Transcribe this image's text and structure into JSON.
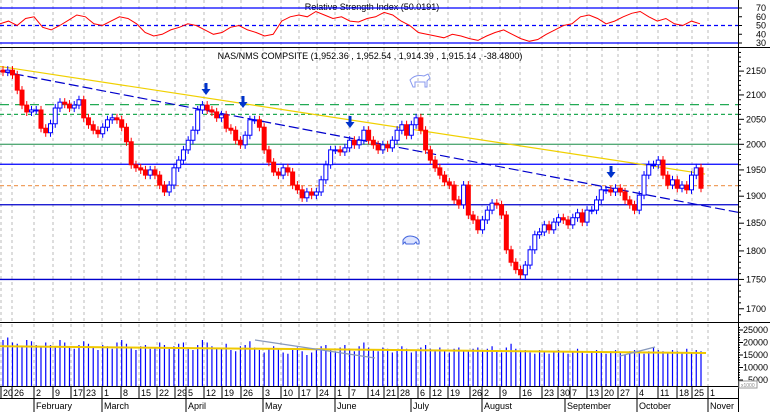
{
  "chart_data": [
    {
      "type": "line",
      "panel": "rsi",
      "title": "Relative Strength Index (50.0191)",
      "y_ticks": [
        "70",
        "60",
        "50",
        "40",
        "30"
      ],
      "ylim": [
        30,
        70
      ],
      "reference_lines": [
        {
          "value": 70,
          "style": "solid"
        },
        {
          "value": 50,
          "style": "dashed"
        },
        {
          "value": 30,
          "style": "solid"
        }
      ],
      "values": [
        52,
        55,
        50,
        58,
        60,
        48,
        45,
        50,
        56,
        62,
        60,
        52,
        50,
        55,
        60,
        58,
        52,
        42,
        38,
        40,
        45,
        48,
        52,
        50,
        45,
        40,
        42,
        48,
        50,
        45,
        42,
        38,
        40,
        55,
        60,
        62,
        60,
        66,
        62,
        58,
        60,
        55,
        54,
        58,
        60,
        65,
        62,
        55,
        50,
        42,
        40,
        38,
        36,
        40,
        38,
        35,
        33,
        38,
        42,
        45,
        40,
        35,
        32,
        34,
        40,
        45,
        50,
        52,
        60,
        62,
        58,
        52,
        55,
        60,
        64,
        66,
        60,
        55,
        58,
        52,
        50,
        55,
        52
      ],
      "colors": {
        "line": "#ff0000",
        "reference": "#0000ff"
      }
    },
    {
      "type": "candlestick",
      "panel": "price",
      "title": "NAS/NMS COMPSITE (1,952.36 , 1,952.54 , 1,914.39 , 1,915.14 , -38.4800)",
      "y_scale": "log",
      "ylim": [
        1680,
        2190
      ],
      "y_ticks": [
        "2150",
        "2100",
        "2050",
        "2000",
        "1950",
        "1900",
        "1850",
        "1800",
        "1750",
        "1700"
      ],
      "closes": [
        2148,
        2152,
        2142,
        2110,
        2079,
        2065,
        2069,
        2069,
        2032,
        2023,
        2041,
        2073,
        2085,
        2081,
        2073,
        2079,
        2090,
        2053,
        2039,
        2028,
        2021,
        2034,
        2049,
        2053,
        2049,
        2034,
        2005,
        1960,
        1954,
        1950,
        1940,
        1950,
        1940,
        1921,
        1908,
        1921,
        1954,
        1969,
        1989,
        2008,
        2028,
        2069,
        2079,
        2069,
        2065,
        2053,
        2059,
        2032,
        2028,
        2008,
        1999,
        2018,
        2049,
        2049,
        2034,
        1989,
        1965,
        1946,
        1940,
        1954,
        1946,
        1921,
        1912,
        1897,
        1908,
        1902,
        1908,
        1931,
        1960,
        1989,
        1989,
        1985,
        1993,
        2008,
        1999,
        2008,
        2028,
        2008,
        1999,
        1989,
        1999,
        1993,
        2008,
        2028,
        2039,
        2018,
        2039,
        2053,
        2028,
        1989,
        1969,
        1954,
        1940,
        1927,
        1921,
        1893,
        1884,
        1921,
        1865,
        1856,
        1838,
        1856,
        1874,
        1887,
        1884,
        1865,
        1802,
        1780,
        1767,
        1758,
        1775,
        1802,
        1829,
        1834,
        1847,
        1838,
        1852,
        1860,
        1856,
        1847,
        1860,
        1869,
        1852,
        1874,
        1874,
        1893,
        1912,
        1912,
        1908,
        1915,
        1908,
        1893,
        1884,
        1874,
        1902,
        1940,
        1960,
        1960,
        1969,
        1940,
        1921,
        1931,
        1915,
        1921,
        1912,
        1940,
        1954,
        1915
      ],
      "horizontal_lines": [
        {
          "value": 2080,
          "color": "#22aa55",
          "style": "dash-long"
        },
        {
          "value": 2060,
          "color": "#22aa55",
          "style": "dashed"
        },
        {
          "value": 2000,
          "color": "#55aa77",
          "style": "solid"
        },
        {
          "value": 1961,
          "color": "#0000ff",
          "style": "solid"
        },
        {
          "value": 1920,
          "color": "#f0a060",
          "style": "dashed"
        },
        {
          "value": 1884,
          "color": "#0000cc",
          "style": "solid"
        },
        {
          "value": 1750,
          "color": "#0000cc",
          "style": "solid"
        }
      ],
      "trendlines": [
        {
          "from": 2160,
          "to": 1942,
          "color": "#f0d000",
          "style": "solid"
        },
        {
          "from": 2150,
          "to": 1870,
          "color": "#0000cc",
          "style": "dashed"
        }
      ],
      "annotations": [
        "down-arrow",
        "down-arrow",
        "down-arrow",
        "down-arrow",
        "bull-icon",
        "bear-icon"
      ],
      "colors": {
        "up": "#0000ff",
        "down": "#ff0000"
      }
    },
    {
      "type": "bar",
      "panel": "volume",
      "y_ticks": [
        "25000",
        "20000",
        "15000",
        "10000",
        "5000"
      ],
      "unit_label": "x1000",
      "ylim": [
        0,
        27000
      ],
      "values": [
        21000,
        22000,
        20000,
        19500,
        18500,
        21000,
        20500,
        19000,
        18000,
        20000,
        19000,
        18500,
        21000,
        20000,
        18000,
        17500,
        19000,
        20500,
        19500,
        18000,
        17000,
        19000,
        18500,
        17500,
        20000,
        21000,
        19500,
        18000,
        17000,
        18500,
        19000,
        17500,
        18000,
        20000,
        19000,
        17500,
        18500,
        19500,
        20000,
        18000,
        17000,
        19000,
        21000,
        20000,
        18500,
        17500,
        18000,
        19500,
        17000,
        16500,
        18500,
        19000,
        20500,
        18000,
        17000,
        16000,
        17500,
        18500,
        17500,
        16000,
        15500,
        17000,
        18000,
        16500,
        15000,
        16000,
        17500,
        18500,
        19000,
        17000,
        16500,
        18000,
        19000,
        17500,
        16500,
        18500,
        20000,
        18000,
        17000,
        16500,
        18000,
        17500,
        16000,
        17000,
        18500,
        17500,
        16000,
        17000,
        18000,
        19000,
        17500,
        16500,
        18000,
        17000,
        16000,
        17500,
        18000,
        17000,
        16500,
        17500,
        18000,
        16500,
        17500,
        18500,
        17000,
        16000,
        18000,
        19500,
        17500,
        16500,
        17000,
        16000,
        15500,
        17000,
        16500,
        15500,
        16000,
        17000,
        16500,
        15500,
        16000,
        17500,
        16500,
        15500,
        16500,
        17000,
        16000,
        15500,
        16500,
        17000,
        16000,
        15000,
        16500,
        17000,
        16000,
        15500,
        16500,
        18000,
        17000,
        16500,
        16000,
        17000,
        16500,
        16000,
        17500,
        16000,
        17000,
        16500
      ],
      "moving_average": {
        "from": 18500,
        "to": 15800,
        "color": "#f0c800"
      },
      "colors": {
        "bar": "#0000ff"
      }
    }
  ],
  "x_axis": {
    "day_ticks": [
      "20",
      "26",
      "2",
      "9",
      "17",
      "23",
      "1",
      "8",
      "15",
      "22",
      "29",
      "5",
      "12",
      "19",
      "26",
      "3",
      "10",
      "17",
      "24",
      "1",
      "7",
      "14",
      "21",
      "28",
      "6",
      "12",
      "19",
      "26",
      "2",
      "9",
      "16",
      "23",
      "30",
      "7",
      "13",
      "20",
      "27",
      "4",
      "11",
      "18",
      "25",
      "1"
    ],
    "months": [
      "February",
      "March",
      "April",
      "May",
      "June",
      "July",
      "August",
      "September",
      "October",
      "Nover"
    ]
  }
}
